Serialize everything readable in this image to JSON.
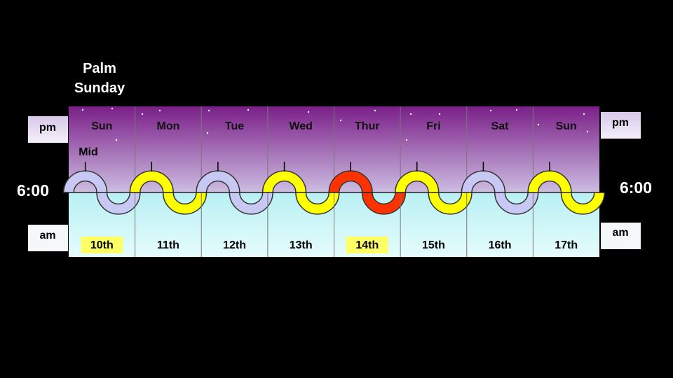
{
  "title": "Palm Sunday",
  "labels": {
    "pm_left": "pm",
    "pm_right": "pm",
    "am_left": "am",
    "am_right": "am",
    "time_left": "6:00",
    "time_right": "6:00",
    "midnight": "Mid"
  },
  "days": [
    {
      "name": "Sun",
      "date": "10th",
      "color": "#c8c8f4",
      "highlight": true
    },
    {
      "name": "Mon",
      "date": "11th",
      "color": "#ffff00",
      "highlight": false
    },
    {
      "name": "Tue",
      "date": "12th",
      "color": "#c8c8f4",
      "highlight": false
    },
    {
      "name": "Wed",
      "date": "13th",
      "color": "#ffff00",
      "highlight": false
    },
    {
      "name": "Thur",
      "date": "14th",
      "color": "#ff3300",
      "highlight": true
    },
    {
      "name": "Fri",
      "date": "15th",
      "color": "#ffff00",
      "highlight": false
    },
    {
      "name": "Sat",
      "date": "16th",
      "color": "#c8c8f4",
      "highlight": false
    },
    {
      "name": "Sun",
      "date": "17th",
      "color": "#ffff00",
      "highlight": false
    }
  ]
}
